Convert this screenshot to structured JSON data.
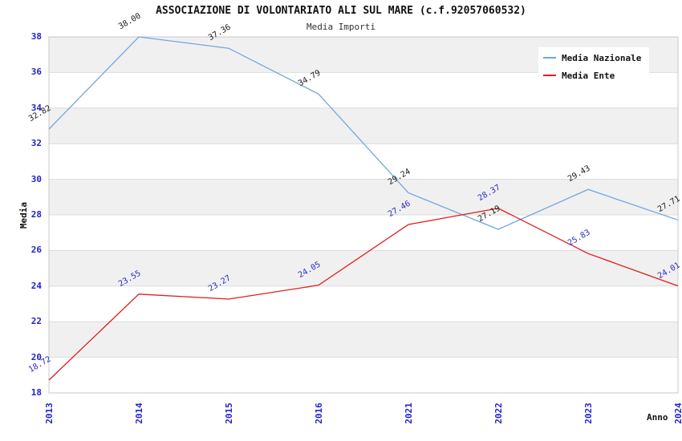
{
  "chart_data": {
    "type": "line",
    "title": "ASSOCIAZIONE DI VOLONTARIATO ALI SUL MARE (c.f.92057060532)",
    "subtitle": "Media Importi",
    "xlabel": "Anno",
    "ylabel": "Media",
    "categories": [
      "2013",
      "2014",
      "2015",
      "2016",
      "2021",
      "2022",
      "2023",
      "2024"
    ],
    "ylim": [
      18,
      38
    ],
    "ytick_step": 2,
    "yticks": [
      "18",
      "20",
      "22",
      "24",
      "26",
      "28",
      "30",
      "32",
      "34",
      "36",
      "38"
    ],
    "grid": "horizontal gridlines with alternating gray bands, top band gray",
    "legend_position": "top-right inside plot",
    "series": [
      {
        "name": "Media Nazionale",
        "color": "#6FA8E0",
        "label_color": "#1a1a1a",
        "values": [
          32.82,
          38.0,
          37.36,
          34.79,
          29.24,
          27.19,
          29.43,
          27.71
        ],
        "labels": [
          "32.82",
          "38.00",
          "37.36",
          "34.79",
          "29.24",
          "27.19",
          "29.43",
          "27.71"
        ]
      },
      {
        "name": "Media Ente",
        "color": "#E31B1B",
        "label_color": "#2B2BC4",
        "values": [
          18.72,
          23.55,
          23.27,
          24.05,
          27.46,
          28.37,
          25.83,
          24.01
        ],
        "labels": [
          "18.72",
          "23.55",
          "23.27",
          "24.05",
          "27.46",
          "28.37",
          "25.83",
          "24.01"
        ]
      }
    ],
    "colors": {
      "tick_label": "#2222CC",
      "band": "#F0F0F0",
      "gridline": "#DCDCDC",
      "border": "#C8C8C8",
      "background": "#FFFFFF"
    }
  }
}
